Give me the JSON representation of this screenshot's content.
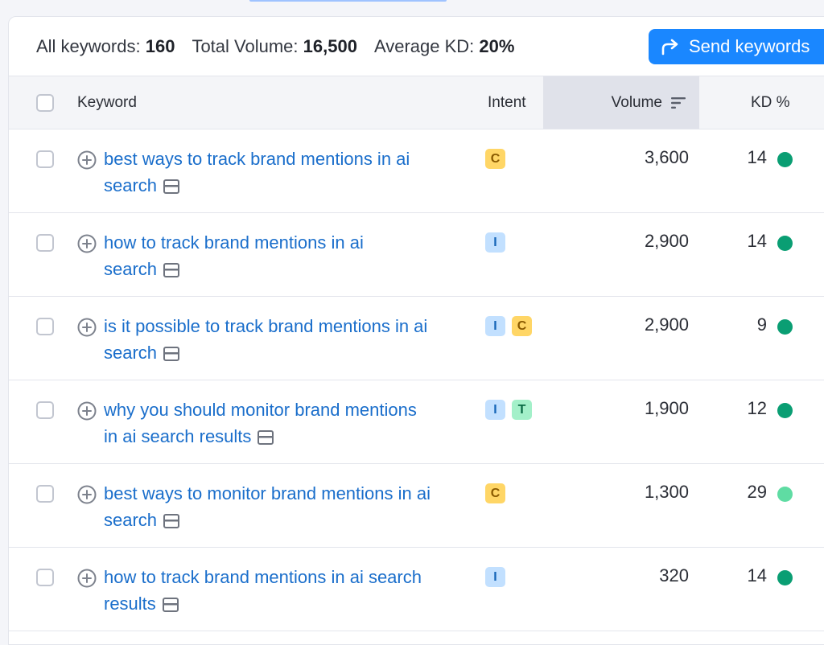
{
  "summary": {
    "all_keywords_label": "All keywords:",
    "all_keywords_value": "160",
    "total_volume_label": "Total Volume:",
    "total_volume_value": "16,500",
    "avg_kd_label": "Average KD:",
    "avg_kd_value": "20%"
  },
  "send_button": {
    "label": "Send keywords",
    "icon": "share-arrow-icon"
  },
  "columns": {
    "keyword": "Keyword",
    "intent": "Intent",
    "volume": "Volume",
    "kd": "KD %"
  },
  "colors": {
    "link": "#1a6ecb",
    "accent": "#1a87ff",
    "kd_easy": "#0a9e73",
    "kd_light": "#5fdca3",
    "intent_C_bg": "#ffd666",
    "intent_C_fg": "#8a5a00",
    "intent_I_bg": "#c2e0ff",
    "intent_I_fg": "#1565b8",
    "intent_T_bg": "#a3f0c9",
    "intent_T_fg": "#0a6b45"
  },
  "rows": [
    {
      "kw_line1": "best ways to track brand mentions in ai",
      "kw_line2": "search",
      "intents": [
        "C"
      ],
      "volume": "3,600",
      "kd": "14",
      "kd_level": "dark"
    },
    {
      "kw_line1": "how to track brand mentions in ai",
      "kw_line2": "search",
      "intents": [
        "I"
      ],
      "volume": "2,900",
      "kd": "14",
      "kd_level": "dark"
    },
    {
      "kw_line1": "is it possible to track brand mentions in ai",
      "kw_line2": "search",
      "intents": [
        "I",
        "C"
      ],
      "volume": "2,900",
      "kd": "9",
      "kd_level": "dark"
    },
    {
      "kw_line1": "why you should monitor brand mentions",
      "kw_line2": "in ai search results",
      "intents": [
        "I",
        "T"
      ],
      "volume": "1,900",
      "kd": "12",
      "kd_level": "dark"
    },
    {
      "kw_line1": "best ways to monitor brand mentions in ai",
      "kw_line2": "search",
      "intents": [
        "C"
      ],
      "volume": "1,300",
      "kd": "29",
      "kd_level": "light"
    },
    {
      "kw_line1": "how to track brand mentions in ai search",
      "kw_line2": "results",
      "intents": [
        "I"
      ],
      "volume": "320",
      "kd": "14",
      "kd_level": "dark"
    }
  ]
}
